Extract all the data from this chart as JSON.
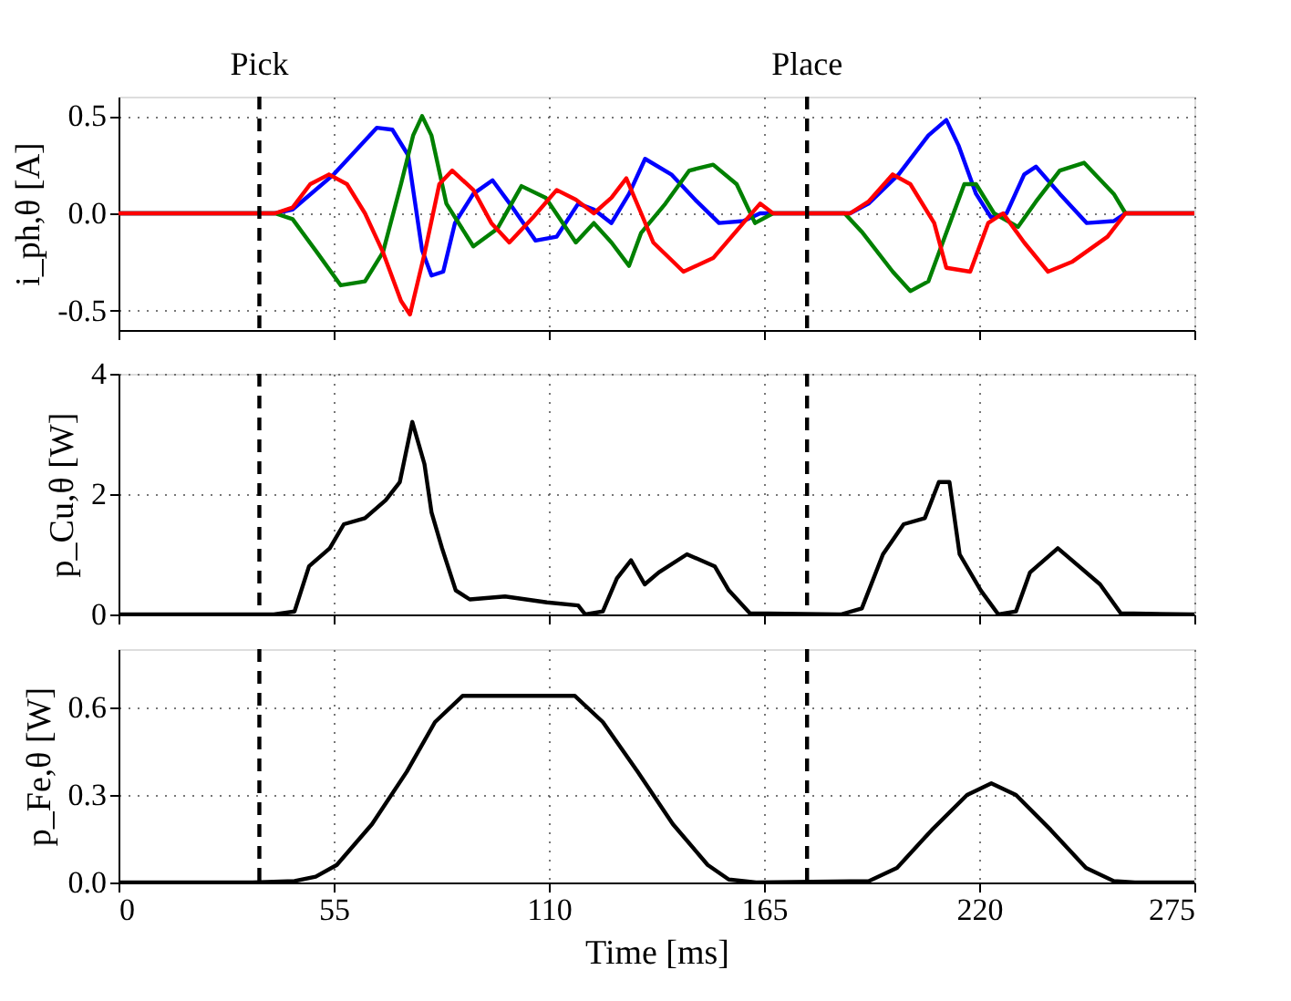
{
  "chart_data": [
    {
      "type": "line",
      "ylabel": "i_ph,θ [A]",
      "xlim": [
        0,
        275
      ],
      "xticks": [
        0,
        55,
        110,
        165,
        220,
        275
      ],
      "ylim": [
        -0.6,
        0.6
      ],
      "yticks": [
        -0.5,
        {
          "value": 0,
          "label": "0.0"
        },
        0.5
      ],
      "grid": true,
      "tick_labels": "y",
      "line_style": "solid",
      "ref_lines": [
        {
          "axis": "x",
          "value": 36,
          "label": "Pick",
          "color": "#000000",
          "line_style": "dashed"
        },
        {
          "axis": "x",
          "value": 176,
          "label": "Place",
          "color": "#000000",
          "line_style": "dashed"
        }
      ],
      "series": [
        {
          "color": "#0000ff",
          "x": [
            0,
            40,
            44.5,
            55,
            66,
            70,
            74,
            77.6,
            80,
            83,
            86,
            90.7,
            95.6,
            100,
            106.6,
            112,
            117.5,
            121.5,
            126,
            130.5,
            134.6,
            141.3,
            147.4,
            153.5,
            159.7,
            164,
            187,
            191.7,
            199.4,
            207,
            211.6,
            214.7,
            219.2,
            223,
            227,
            231.5,
            234.5,
            240.6,
            247.5,
            254.4,
            257.4,
            275
          ],
          "values": [
            0,
            0,
            0.02,
            0.2,
            0.44,
            0.43,
            0.3,
            -0.19,
            -0.32,
            -0.3,
            -0.05,
            0.1,
            0.17,
            0.05,
            -0.14,
            -0.12,
            0.05,
            0.02,
            -0.05,
            0.1,
            0.28,
            0.2,
            0.07,
            -0.05,
            -0.04,
            0,
            0,
            0.05,
            0.2,
            0.4,
            0.48,
            0.35,
            0.1,
            -0.02,
            0,
            0.2,
            0.24,
            0.1,
            -0.05,
            -0.04,
            0,
            0
          ]
        },
        {
          "color": "#008000",
          "x": [
            0,
            40,
            44.5,
            50.7,
            56.8,
            63,
            67.6,
            72.2,
            75.3,
            77.6,
            80,
            83.8,
            90.7,
            96.8,
            103,
            109.2,
            116.9,
            121.5,
            126,
            130.5,
            133.6,
            139.8,
            145.9,
            152,
            158,
            162.7,
            167.3,
            185.6,
            190.2,
            197.9,
            202.4,
            207,
            211.6,
            216.2,
            219.2,
            223.8,
            229.9,
            234.5,
            240.6,
            246.8,
            254.4,
            257.4,
            275
          ],
          "values": [
            0,
            0,
            -0.03,
            -0.2,
            -0.37,
            -0.35,
            -0.2,
            0.15,
            0.4,
            0.5,
            0.4,
            0.05,
            -0.17,
            -0.08,
            0.14,
            0.08,
            -0.15,
            -0.05,
            -0.15,
            -0.27,
            -0.1,
            0.05,
            0.22,
            0.25,
            0.15,
            -0.05,
            0,
            0,
            -0.1,
            -0.3,
            -0.4,
            -0.35,
            -0.1,
            0.15,
            0.15,
            0,
            -0.07,
            0.06,
            0.22,
            0.26,
            0.1,
            0,
            0
          ]
        },
        {
          "color": "#ff0000",
          "x": [
            0,
            40,
            44.5,
            49,
            53.8,
            58.4,
            63,
            67.6,
            72.2,
            74.5,
            78.3,
            82,
            85.3,
            90.7,
            95.3,
            99.9,
            106,
            112,
            116.9,
            121.5,
            126,
            129.8,
            133.6,
            136.7,
            144.4,
            152,
            159.7,
            164,
            167.3,
            187,
            191.7,
            197.9,
            202.4,
            208.5,
            211.6,
            217.7,
            222.3,
            226.1,
            231.5,
            237.6,
            243.7,
            252.8,
            257.4,
            275
          ],
          "values": [
            0,
            0,
            0.03,
            0.15,
            0.2,
            0.15,
            0,
            -0.2,
            -0.45,
            -0.52,
            -0.2,
            0.15,
            0.22,
            0.12,
            -0.05,
            -0.15,
            -0.02,
            0.12,
            0.07,
            0,
            0.08,
            0.18,
            0,
            -0.15,
            -0.3,
            -0.23,
            -0.05,
            0.05,
            0,
            0,
            0.06,
            0.2,
            0.15,
            -0.05,
            -0.28,
            -0.3,
            -0.05,
            0,
            -0.15,
            -0.3,
            -0.25,
            -0.12,
            0,
            0
          ]
        }
      ]
    },
    {
      "type": "line",
      "ylabel": "p_Cu,θ [W]",
      "xlim": [
        0,
        275
      ],
      "xticks": [
        0,
        55,
        110,
        165,
        220,
        275
      ],
      "ylim": [
        0,
        4
      ],
      "yticks": [
        0,
        2,
        4
      ],
      "grid": true,
      "tick_labels": "y",
      "line_style": "solid",
      "ref_lines": [
        {
          "axis": "x",
          "value": 36,
          "color": "#000000",
          "line_style": "dashed"
        },
        {
          "axis": "x",
          "value": 176,
          "color": "#000000",
          "line_style": "dashed"
        }
      ],
      "series": [
        {
          "color": "#000000",
          "x": [
            0,
            39.7,
            45,
            48.7,
            54,
            57.6,
            63,
            68.3,
            71.9,
            75.1,
            78.2,
            80,
            82.7,
            86.2,
            89.8,
            98.8,
            109.5,
            117.5,
            119.3,
            123.8,
            127.4,
            131,
            134.5,
            138.1,
            145.3,
            152.4,
            156,
            161.4,
            184.6,
            190,
            195.4,
            200.7,
            206.1,
            209.7,
            212.4,
            215,
            220.4,
            224.9,
            229.4,
            233,
            240.1,
            245.5,
            250.9,
            256.2,
            275
          ],
          "values": [
            0,
            0,
            0.05,
            0.8,
            1.1,
            1.5,
            1.6,
            1.9,
            2.2,
            3.2,
            2.5,
            1.7,
            1.1,
            0.4,
            0.25,
            0.3,
            0.2,
            0.15,
            0,
            0.05,
            0.6,
            0.9,
            0.5,
            0.7,
            1.0,
            0.8,
            0.4,
            0.02,
            0,
            0.1,
            1.0,
            1.5,
            1.6,
            2.2,
            2.2,
            1.0,
            0.4,
            0,
            0.05,
            0.7,
            1.1,
            0.8,
            0.5,
            0.02,
            0
          ]
        }
      ]
    },
    {
      "type": "line",
      "ylabel": "p_Fe,θ [W]",
      "xlabel": "Time [ms]",
      "xlim": [
        0,
        275
      ],
      "xticks": [
        0,
        55,
        110,
        165,
        220,
        275
      ],
      "ylim": [
        0,
        0.8
      ],
      "yticks": [
        {
          "value": 0,
          "label": "0.0"
        },
        0.3,
        0.6
      ],
      "grid": true,
      "line_style": "solid",
      "ref_lines": [
        {
          "axis": "x",
          "value": 36,
          "color": "#000000",
          "line_style": "dashed"
        },
        {
          "axis": "x",
          "value": 176,
          "color": "#000000",
          "line_style": "dashed"
        }
      ],
      "series": [
        {
          "color": "#000000",
          "x": [
            0,
            34.3,
            45,
            50.4,
            55.8,
            64.8,
            73.7,
            80.9,
            88,
            116.6,
            123.8,
            132.7,
            141.7,
            150.6,
            156,
            163,
            191.8,
            199,
            207.9,
            216.9,
            223.1,
            229.4,
            238.3,
            247.3,
            254.4,
            259.8,
            275
          ],
          "values": [
            0,
            0,
            0.005,
            0.02,
            0.06,
            0.2,
            0.38,
            0.55,
            0.64,
            0.64,
            0.55,
            0.38,
            0.2,
            0.06,
            0.01,
            0,
            0.005,
            0.05,
            0.18,
            0.3,
            0.34,
            0.3,
            0.18,
            0.05,
            0.005,
            0,
            0
          ]
        }
      ]
    }
  ]
}
